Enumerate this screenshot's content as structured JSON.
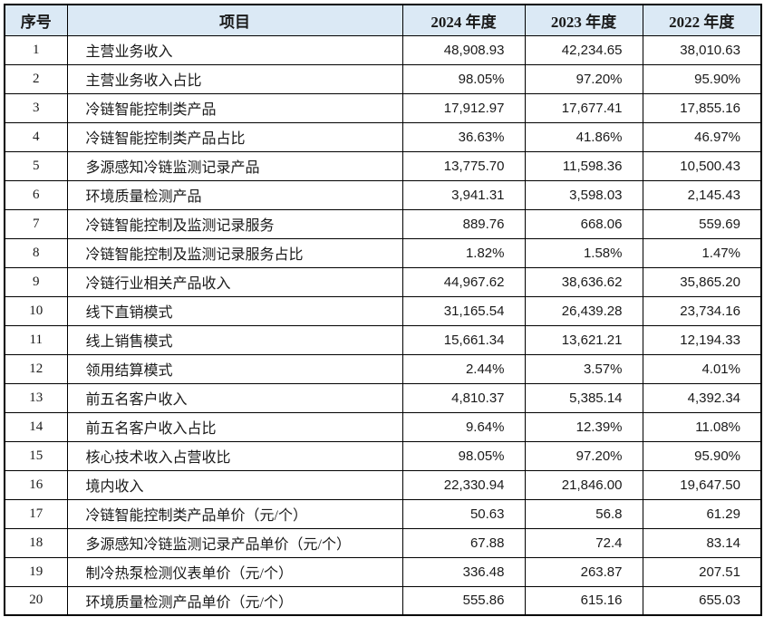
{
  "colors": {
    "header_bg": "#dbe9f5",
    "border": "#000000",
    "text": "#1a1a1a",
    "body_bg": "#ffffff"
  },
  "table": {
    "headers": [
      "序号",
      "项目",
      "2024 年度",
      "2023 年度",
      "2022 年度"
    ],
    "rows": [
      [
        "1",
        "主营业务收入",
        "48,908.93",
        "42,234.65",
        "38,010.63"
      ],
      [
        "2",
        "主营业务收入占比",
        "98.05%",
        "97.20%",
        "95.90%"
      ],
      [
        "3",
        "冷链智能控制类产品",
        "17,912.97",
        "17,677.41",
        "17,855.16"
      ],
      [
        "4",
        "冷链智能控制类产品占比",
        "36.63%",
        "41.86%",
        "46.97%"
      ],
      [
        "5",
        "多源感知冷链监测记录产品",
        "13,775.70",
        "11,598.36",
        "10,500.43"
      ],
      [
        "6",
        "环境质量检测产品",
        "3,941.31",
        "3,598.03",
        "2,145.43"
      ],
      [
        "7",
        "冷链智能控制及监测记录服务",
        "889.76",
        "668.06",
        "559.69"
      ],
      [
        "8",
        "冷链智能控制及监测记录服务占比",
        "1.82%",
        "1.58%",
        "1.47%"
      ],
      [
        "9",
        "冷链行业相关产品收入",
        "44,967.62",
        "38,636.62",
        "35,865.20"
      ],
      [
        "10",
        "线下直销模式",
        "31,165.54",
        "26,439.28",
        "23,734.16"
      ],
      [
        "11",
        "线上销售模式",
        "15,661.34",
        "13,621.21",
        "12,194.33"
      ],
      [
        "12",
        "领用结算模式",
        "2.44%",
        "3.57%",
        "4.01%"
      ],
      [
        "13",
        "前五名客户收入",
        "4,810.37",
        "5,385.14",
        "4,392.34"
      ],
      [
        "14",
        "前五名客户收入占比",
        "9.64%",
        "12.39%",
        "11.08%"
      ],
      [
        "15",
        "核心技术收入占营收比",
        "98.05%",
        "97.20%",
        "95.90%"
      ],
      [
        "16",
        "境内收入",
        "22,330.94",
        "21,846.00",
        "19,647.50"
      ],
      [
        "17",
        "冷链智能控制类产品单价（元/个）",
        "50.63",
        "56.8",
        "61.29"
      ],
      [
        "18",
        "多源感知冷链监测记录产品单价（元/个）",
        "67.88",
        "72.4",
        "83.14"
      ],
      [
        "19",
        "制冷热泵检测仪表单价（元/个）",
        "336.48",
        "263.87",
        "207.51"
      ],
      [
        "20",
        "环境质量检测产品单价（元/个）",
        "555.86",
        "615.16",
        "655.03"
      ]
    ]
  }
}
